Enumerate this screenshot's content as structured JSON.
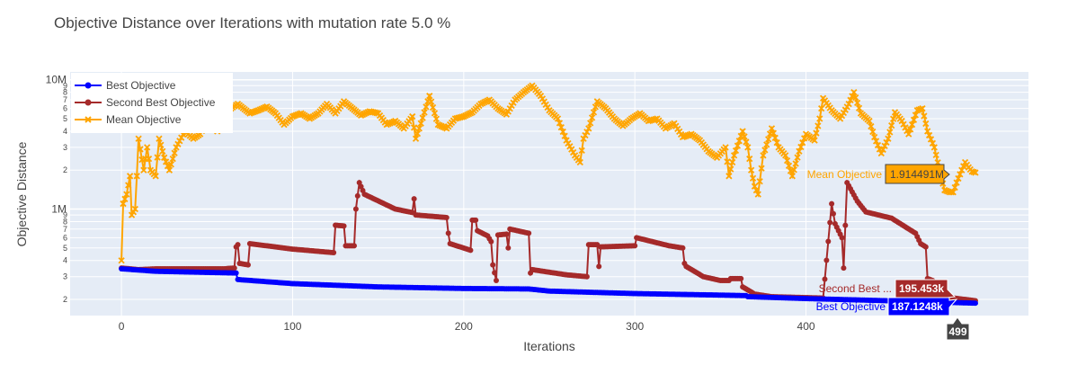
{
  "title": "Objective Distance over Iterations with mutation rate 5.0 %",
  "colors": {
    "background": "#ffffff",
    "plot_bg": "#e5ecf6",
    "grid": "#ffffff",
    "best": "#0000ff",
    "second": "#a52a2a",
    "mean": "#ffa500"
  },
  "chart_data": {
    "type": "line",
    "title": "Objective Distance over Iterations with mutation rate 5.0 %",
    "xlabel": "Iterations",
    "ylabel": "Objective Distance",
    "xlim": [
      -30,
      530
    ],
    "ylim": [
      150000,
      11500000
    ],
    "yscale": "log",
    "xticks": [
      0,
      100,
      200,
      300,
      400
    ],
    "grid": true,
    "legend_position": "top-left",
    "x_max": 499,
    "series": [
      {
        "name": "Best Objective",
        "color": "#0000ff",
        "marker": "circle",
        "points": [
          [
            0,
            345000
          ],
          [
            20,
            330000
          ],
          [
            67,
            320000
          ],
          [
            68,
            285000
          ],
          [
            100,
            265000
          ],
          [
            150,
            250000
          ],
          [
            200,
            243000
          ],
          [
            238,
            241000
          ],
          [
            250,
            232000
          ],
          [
            300,
            222000
          ],
          [
            350,
            216000
          ],
          [
            365,
            214000
          ],
          [
            366,
            210000
          ],
          [
            400,
            203000
          ],
          [
            450,
            195000
          ],
          [
            499,
            187125
          ]
        ]
      },
      {
        "name": "Second Best Objective",
        "color": "#a52a2a",
        "marker": "circle",
        "points": [
          [
            0,
            350000
          ],
          [
            10,
            340000
          ],
          [
            20,
            345000
          ],
          [
            60,
            345000
          ],
          [
            66,
            350000
          ],
          [
            67,
            510000
          ],
          [
            68,
            530000
          ],
          [
            69,
            380000
          ],
          [
            74,
            370000
          ],
          [
            75,
            540000
          ],
          [
            100,
            490000
          ],
          [
            124,
            460000
          ],
          [
            125,
            750000
          ],
          [
            130,
            740000
          ],
          [
            131,
            520000
          ],
          [
            136,
            520000
          ],
          [
            137,
            1000000
          ],
          [
            139,
            1600000
          ],
          [
            142,
            1300000
          ],
          [
            160,
            1000000
          ],
          [
            170,
            940000
          ],
          [
            171,
            1200000
          ],
          [
            172,
            900000
          ],
          [
            190,
            860000
          ],
          [
            191,
            650000
          ],
          [
            192,
            540000
          ],
          [
            204,
            480000
          ],
          [
            205,
            820000
          ],
          [
            207,
            820000
          ],
          [
            208,
            680000
          ],
          [
            214,
            620000
          ],
          [
            216,
            560000
          ],
          [
            217,
            370000
          ],
          [
            219,
            280000
          ],
          [
            220,
            630000
          ],
          [
            225,
            640000
          ],
          [
            226,
            500000
          ],
          [
            227,
            700000
          ],
          [
            238,
            650000
          ],
          [
            239,
            320000
          ],
          [
            240,
            340000
          ],
          [
            260,
            310000
          ],
          [
            272,
            300000
          ],
          [
            273,
            530000
          ],
          [
            278,
            530000
          ],
          [
            279,
            360000
          ],
          [
            280,
            510000
          ],
          [
            300,
            520000
          ],
          [
            301,
            600000
          ],
          [
            320,
            520000
          ],
          [
            328,
            500000
          ],
          [
            329,
            380000
          ],
          [
            330,
            360000
          ],
          [
            340,
            300000
          ],
          [
            350,
            280000
          ],
          [
            355,
            280000
          ],
          [
            356,
            290000
          ],
          [
            362,
            290000
          ],
          [
            363,
            250000
          ],
          [
            370,
            220000
          ],
          [
            380,
            210000
          ],
          [
            410,
            205000
          ],
          [
            415,
            1100000
          ],
          [
            417,
            770000
          ],
          [
            421,
            600000
          ],
          [
            422,
            350000
          ],
          [
            424,
            1600000
          ],
          [
            430,
            1150000
          ],
          [
            435,
            950000
          ],
          [
            450,
            850000
          ],
          [
            464,
            650000
          ],
          [
            467,
            540000
          ],
          [
            470,
            510000
          ],
          [
            471,
            290000
          ],
          [
            474,
            280000
          ],
          [
            480,
            210000
          ],
          [
            499,
            195453
          ]
        ]
      },
      {
        "name": "Mean Objective",
        "color": "#ffa500",
        "marker": "x",
        "points": [
          [
            0,
            400000
          ],
          [
            1,
            1100000
          ],
          [
            3,
            1300000
          ],
          [
            5,
            1800000
          ],
          [
            6,
            900000
          ],
          [
            8,
            1000000
          ],
          [
            9,
            1800000
          ],
          [
            10,
            3500000
          ],
          [
            13,
            2000000
          ],
          [
            15,
            3000000
          ],
          [
            17,
            2000000
          ],
          [
            20,
            1800000
          ],
          [
            22,
            3500000
          ],
          [
            25,
            2500000
          ],
          [
            28,
            2000000
          ],
          [
            32,
            3000000
          ],
          [
            37,
            4000000
          ],
          [
            42,
            3500000
          ],
          [
            46,
            3800000
          ],
          [
            50,
            4800000
          ],
          [
            56,
            4000000
          ],
          [
            60,
            5000000
          ],
          [
            64,
            6000000
          ],
          [
            68,
            6500000
          ],
          [
            75,
            5500000
          ],
          [
            80,
            5800000
          ],
          [
            85,
            6200000
          ],
          [
            90,
            5500000
          ],
          [
            95,
            4500000
          ],
          [
            100,
            5200000
          ],
          [
            105,
            5500000
          ],
          [
            110,
            5000000
          ],
          [
            115,
            5500000
          ],
          [
            120,
            6500000
          ],
          [
            125,
            5500000
          ],
          [
            130,
            6800000
          ],
          [
            135,
            6000000
          ],
          [
            140,
            5300000
          ],
          [
            145,
            5700000
          ],
          [
            150,
            5500000
          ],
          [
            155,
            4500000
          ],
          [
            160,
            4800000
          ],
          [
            165,
            4200000
          ],
          [
            170,
            5200000
          ],
          [
            172,
            3500000
          ],
          [
            175,
            4600000
          ],
          [
            180,
            7500000
          ],
          [
            185,
            4500000
          ],
          [
            190,
            4200000
          ],
          [
            195,
            5000000
          ],
          [
            200,
            5200000
          ],
          [
            205,
            5600000
          ],
          [
            210,
            6500000
          ],
          [
            215,
            7000000
          ],
          [
            220,
            6000000
          ],
          [
            225,
            5400000
          ],
          [
            230,
            7000000
          ],
          [
            235,
            8000000
          ],
          [
            240,
            9000000
          ],
          [
            245,
            7500000
          ],
          [
            250,
            5800000
          ],
          [
            255,
            5000000
          ],
          [
            260,
            3400000
          ],
          [
            265,
            2600000
          ],
          [
            268,
            2300000
          ],
          [
            270,
            3500000
          ],
          [
            273,
            4200000
          ],
          [
            278,
            6800000
          ],
          [
            283,
            6000000
          ],
          [
            288,
            5000000
          ],
          [
            293,
            4400000
          ],
          [
            298,
            5000000
          ],
          [
            303,
            5500000
          ],
          [
            308,
            4800000
          ],
          [
            313,
            5000000
          ],
          [
            318,
            4200000
          ],
          [
            323,
            4600000
          ],
          [
            328,
            3600000
          ],
          [
            333,
            3800000
          ],
          [
            338,
            3400000
          ],
          [
            343,
            2800000
          ],
          [
            348,
            2500000
          ],
          [
            353,
            3000000
          ],
          [
            355,
            1800000
          ],
          [
            358,
            2600000
          ],
          [
            363,
            4000000
          ],
          [
            366,
            3000000
          ],
          [
            368,
            2000000
          ],
          [
            370,
            1500000
          ],
          [
            372,
            1300000
          ],
          [
            375,
            2600000
          ],
          [
            380,
            4200000
          ],
          [
            384,
            3000000
          ],
          [
            388,
            2600000
          ],
          [
            392,
            1800000
          ],
          [
            396,
            2800000
          ],
          [
            400,
            3800000
          ],
          [
            405,
            3400000
          ],
          [
            408,
            5000000
          ],
          [
            410,
            7200000
          ],
          [
            415,
            5800000
          ],
          [
            420,
            5000000
          ],
          [
            425,
            6500000
          ],
          [
            428,
            8000000
          ],
          [
            432,
            5500000
          ],
          [
            437,
            4800000
          ],
          [
            440,
            3600000
          ],
          [
            444,
            2700000
          ],
          [
            448,
            3500000
          ],
          [
            452,
            5600000
          ],
          [
            456,
            4800000
          ],
          [
            460,
            3800000
          ],
          [
            465,
            5800000
          ],
          [
            468,
            6000000
          ],
          [
            471,
            4000000
          ],
          [
            475,
            3000000
          ],
          [
            478,
            2000000
          ],
          [
            481,
            1400000
          ],
          [
            484,
            1350000
          ],
          [
            486,
            1350000
          ],
          [
            488,
            1600000
          ],
          [
            491,
            2000000
          ],
          [
            493,
            2300000
          ],
          [
            495,
            2100000
          ],
          [
            497,
            1950000
          ],
          [
            499,
            1914491
          ]
        ]
      }
    ]
  },
  "hover": {
    "mean_name": "Mean Objective",
    "mean_value": "1.914491M",
    "second_name": "Second Best ...",
    "second_value": "195.453k",
    "best_name": "Best Objective",
    "best_value": "187.1248k",
    "x_value": "499"
  },
  "y_ticks": {
    "major": [
      {
        "v": 1000000,
        "label": "1M"
      },
      {
        "v": 10000000,
        "label": "10M"
      }
    ],
    "minor": [
      {
        "v": 200000,
        "label": "2"
      },
      {
        "v": 300000,
        "label": "3"
      },
      {
        "v": 400000,
        "label": "4"
      },
      {
        "v": 500000,
        "label": "5"
      },
      {
        "v": 600000,
        "label": "6"
      },
      {
        "v": 700000,
        "label": "7"
      },
      {
        "v": 800000,
        "label": "8"
      },
      {
        "v": 900000,
        "label": "9"
      },
      {
        "v": 2000000,
        "label": "2"
      },
      {
        "v": 3000000,
        "label": "3"
      },
      {
        "v": 4000000,
        "label": "4"
      },
      {
        "v": 5000000,
        "label": "5"
      },
      {
        "v": 6000000,
        "label": "6"
      },
      {
        "v": 7000000,
        "label": "7"
      },
      {
        "v": 8000000,
        "label": "8"
      },
      {
        "v": 9000000,
        "label": "9"
      }
    ]
  }
}
